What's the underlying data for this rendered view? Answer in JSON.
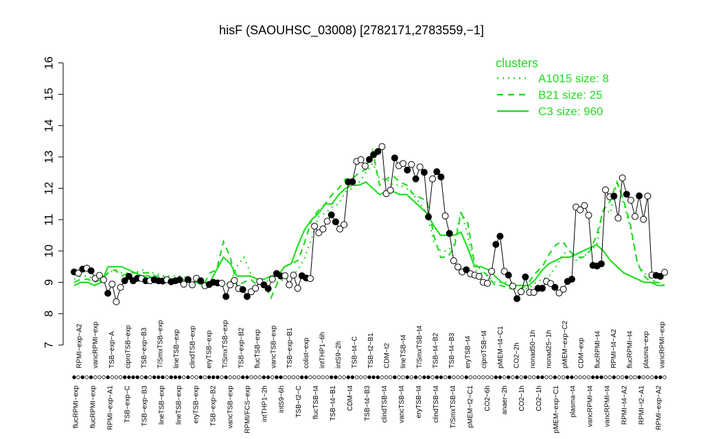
{
  "chart_data": {
    "type": "line",
    "title": "hisF (SAOUHSC_03008) [2782171,2783559,−1]",
    "xlabel": "",
    "ylabel": "",
    "ylim": [
      7,
      16
    ],
    "yticks": [
      "7",
      "8",
      "9",
      "10",
      "11",
      "12",
      "13",
      "14",
      "15",
      "16"
    ],
    "x_top_labels": [
      "RPMI−exp−A2",
      "vancRPMI−exp",
      "TSB−exp−A",
      "ciproTSB−exp",
      "TSB−exp−B3",
      "T/SmxTSB−exp",
      "lineTSB−exp",
      "clindTSB−exp",
      "eryTSB−exp",
      "T/SmxTSB−exp",
      "TSB−exp−B2",
      "flucTSB−exp",
      "vancTSB−exp",
      "TSB−exp−B1",
      "colist−exp",
      "intTHP1−6h",
      "intS9−2h",
      "TSB−t4−C",
      "TSB−t2−B1",
      "CDM−t2",
      "lineTSB−t4",
      "T/SmxTSB−t4",
      "TSB−t4−B2",
      "TSB−t4−B3",
      "eryTSB−t4",
      "ciproTSB−t4",
      "pMEM−t4−C1",
      "CO2−2h",
      "nonad50−1h",
      "nonad25−1h",
      "pMEM−exp−C2",
      "CDM−exp",
      "flucRPMI−t4",
      "RPMI−t4−A2",
      "flucRPMI−t4",
      "plasma−exp",
      "vancRPMI−exp"
    ],
    "x_bottom_labels": [
      "flucRPMI−exp",
      "flucRPMI−exp",
      "RPMI−exp−A1",
      "TSB−exp−C",
      "TSB−exp−B3",
      "lineTSB−exp",
      "lineTSB−exp",
      "eryTSB−exp",
      "TSB−exp−B2",
      "vancTSB−exp",
      "RPMI/FCS−exp",
      "intTHP1−2h",
      "intS9−6h",
      "TSB−t2−C",
      "flucTSB−t4",
      "TSB−t4−B1",
      "CDM−t4",
      "TSB−t4−B3",
      "clindTSB−t4",
      "vancTSB−t4",
      "eryTSB−t4",
      "clindTSB−t4",
      "T/SmxTSB−t4",
      "pMEM−t2−C1",
      "CO2−6h",
      "anaer−2h",
      "CO2−1h",
      "CO2−1h",
      "pMEM−exp−C1",
      "plasma−t4",
      "vancRPMI−t4",
      "vancRPMI−t4",
      "RPMI−t4−A2",
      "RPMI−t2−A1",
      "RPMI−exp−A2"
    ],
    "series": [
      {
        "name": "A1015 size: 8",
        "style": "dotted",
        "values": [
          9.1,
          9.2,
          9.2,
          9.1,
          9.0,
          9.3,
          9.4,
          9.3,
          9.3,
          9.3,
          9.4,
          9.3,
          9.3,
          9.2,
          9.2,
          9.2,
          9.2,
          9.1,
          9.1,
          9.0,
          9.0,
          8.9,
          8.9,
          9.0,
          9.5,
          9.8,
          9.3,
          9.0,
          9.0,
          9.1,
          9.0,
          9.1,
          9.2,
          9.4,
          9.8,
          10.4,
          11.1,
          11.2,
          11.4,
          11.5,
          11.9,
          12.0,
          12.2,
          12.5,
          12.8,
          12.3,
          12.3,
          12.1,
          12.1,
          12.0,
          11.8,
          11.5,
          11.2,
          10.3,
          10.0,
          10.0,
          10.2,
          11.3,
          10.5,
          9.4,
          9.3,
          9.2,
          9.0,
          9.0,
          9.0,
          8.9,
          8.8,
          8.8,
          9.0,
          9.1,
          9.2,
          9.5,
          9.9,
          10.0,
          9.7,
          9.8,
          10.0,
          10.2,
          11.4,
          11.2,
          12.2,
          11.5,
          10.7,
          9.6,
          9.3,
          9.1,
          9.0,
          8.9
        ]
      },
      {
        "name": "B21 size: 25",
        "style": "dashed",
        "values": [
          9.0,
          9.1,
          9.1,
          9.0,
          9.1,
          9.3,
          9.4,
          9.2,
          9.3,
          9.3,
          9.3,
          9.3,
          9.2,
          9.2,
          9.1,
          9.1,
          9.1,
          9.0,
          9.0,
          8.9,
          9.3,
          9.4,
          10.3,
          9.8,
          8.9,
          9.0,
          9.1,
          8.9,
          9.0,
          8.5,
          9.0,
          9.5,
          9.6,
          9.7,
          10.3,
          11.0,
          11.3,
          11.5,
          11.8,
          12.0,
          12.3,
          12.3,
          12.5,
          12.6,
          13.2,
          12.1,
          12.3,
          12.4,
          12.2,
          12.1,
          11.8,
          11.7,
          11.6,
          10.5,
          9.8,
          9.8,
          10.1,
          11.2,
          10.9,
          9.6,
          9.4,
          9.2,
          8.9,
          8.9,
          8.8,
          8.8,
          8.8,
          9.0,
          9.3,
          9.5,
          9.9,
          10.2,
          10.3,
          10.0,
          9.8,
          9.8,
          10.0,
          10.5,
          11.3,
          11.6,
          12.2,
          11.6,
          10.8,
          9.6,
          9.2,
          9.0,
          9.0,
          8.9
        ]
      },
      {
        "name": "C3 size: 960",
        "style": "solid",
        "values": [
          8.9,
          9.0,
          9.0,
          8.9,
          9.0,
          9.5,
          9.5,
          9.5,
          9.4,
          9.3,
          9.2,
          9.2,
          9.1,
          9.1,
          9.1,
          9.1,
          9.1,
          9.0,
          9.0,
          9.0,
          9.0,
          9.4,
          9.8,
          9.6,
          9.2,
          9.2,
          9.2,
          9.1,
          9.1,
          9.2,
          9.2,
          9.5,
          9.6,
          10.2,
          10.7,
          11.0,
          11.2,
          11.5,
          11.5,
          11.8,
          12.0,
          12.1,
          12.1,
          12.2,
          12.0,
          11.8,
          11.9,
          11.9,
          11.8,
          11.8,
          11.6,
          11.4,
          11.2,
          10.8,
          10.5,
          10.5,
          10.5,
          10.6,
          10.1,
          9.5,
          9.5,
          9.4,
          9.2,
          9.0,
          8.9,
          8.9,
          8.9,
          8.9,
          9.1,
          9.4,
          9.6,
          9.7,
          9.8,
          9.8,
          9.9,
          10.0,
          10.1,
          10.2,
          10.0,
          9.7,
          9.5,
          9.3,
          9.2,
          9.1,
          9.0,
          9.0,
          8.9,
          8.9
        ]
      }
    ],
    "samples": {
      "values": [
        9.33,
        9.29,
        9.42,
        9.45,
        9.37,
        9.13,
        9.22,
        9.08,
        8.65,
        8.94,
        8.38,
        8.84,
        9.05,
        9.19,
        9.05,
        9.13,
        9.12,
        9.05,
        9.05,
        9.08,
        9.05,
        9.04,
        9.08,
        9.02,
        9.05,
        9.08,
        8.94,
        9.09,
        8.92,
        9.13,
        9.05,
        8.89,
        8.93,
        9.0,
        8.98,
        8.97,
        8.55,
        8.92,
        9.06,
        8.8,
        8.77,
        8.55,
        8.7,
        8.81,
        9.03,
        8.92,
        8.8,
        9.1,
        9.28,
        9.2,
        9.21,
        8.92,
        9.23,
        8.81,
        9.21,
        9.14,
        9.12,
        10.79,
        10.58,
        10.7,
        10.95,
        11.15,
        10.93,
        10.7,
        10.84,
        12.2,
        12.21,
        12.86,
        12.91,
        12.71,
        12.92,
        13.07,
        13.17,
        13.33,
        11.83,
        11.94,
        12.97,
        12.72,
        12.79,
        12.58,
        12.76,
        12.3,
        12.68,
        12.51,
        11.09,
        12.3,
        12.53,
        12.36,
        11.12,
        10.56,
        9.69,
        9.49,
        9.33,
        9.4,
        9.27,
        9.23,
        9.19,
        9.0,
        8.97,
        9.35,
        10.21,
        10.47,
        9.35,
        9.23,
        8.88,
        8.48,
        8.7,
        9.17,
        8.68,
        8.68,
        8.81,
        8.81,
        9.03,
        8.96,
        8.84,
        8.66,
        8.78,
        9.03,
        9.1,
        11.4,
        11.31,
        11.45,
        11.14,
        9.54,
        9.52,
        9.59,
        11.95,
        11.73,
        11.75,
        11.05,
        12.33,
        11.81,
        11.62,
        11.1,
        11.76,
        11.01,
        11.75,
        9.23,
        9.22,
        9.19,
        9.32
      ],
      "filled": [
        true,
        false,
        true,
        false,
        true,
        false,
        false,
        false,
        true,
        false,
        false,
        false,
        true,
        true,
        true,
        true,
        false,
        true,
        false,
        true,
        true,
        true,
        false,
        true,
        true,
        true,
        false,
        true,
        false,
        false,
        true,
        false,
        true,
        true,
        true,
        false,
        true,
        false,
        false,
        false,
        true,
        true,
        false,
        false,
        false,
        true,
        true,
        false,
        true,
        true,
        false,
        false,
        false,
        false,
        true,
        true,
        false,
        false,
        false,
        false,
        false,
        true,
        true,
        false,
        false,
        true,
        true,
        false,
        false,
        false,
        true,
        true,
        true,
        false,
        false,
        false,
        true,
        false,
        false,
        true,
        false,
        true,
        false,
        true,
        true,
        false,
        true,
        true,
        false,
        true,
        false,
        false,
        false,
        true,
        false,
        false,
        false,
        false,
        false,
        false,
        true,
        true,
        false,
        true,
        false,
        true,
        false,
        true,
        false,
        false,
        true,
        true,
        false,
        false,
        true,
        false,
        false,
        true,
        true,
        false,
        false,
        false,
        false,
        true,
        true,
        true,
        false,
        false,
        true,
        false,
        false,
        true,
        false,
        false,
        true,
        false,
        false,
        false,
        true,
        true,
        false
      ]
    },
    "legend": {
      "title": "clusters",
      "placement": "top-right"
    },
    "colors": {
      "clusters": "#22dd22",
      "data_line": "#000000"
    },
    "grid": false
  }
}
